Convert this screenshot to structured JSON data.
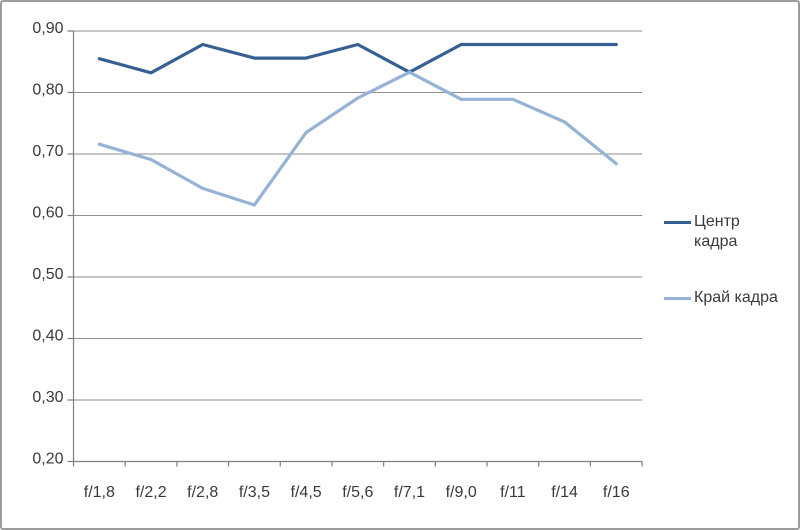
{
  "chart_data": {
    "type": "line",
    "title": "",
    "xlabel": "",
    "ylabel": "",
    "categories": [
      "f/1,8",
      "f/2,2",
      "f/2,8",
      "f/3,5",
      "f/4,5",
      "f/5,6",
      "f/7,1",
      "f/9,0",
      "f/11",
      "f/14",
      "f/16"
    ],
    "series": [
      {
        "name": "Центр кадра",
        "color": "#376092",
        "values": [
          0.855,
          0.832,
          0.878,
          0.856,
          0.856,
          0.878,
          0.833,
          0.878,
          0.878,
          0.878,
          0.878
        ]
      },
      {
        "name": "Край кадра",
        "color": "#95B3D7",
        "values": [
          0.716,
          0.691,
          0.644,
          0.617,
          0.735,
          0.791,
          0.833,
          0.789,
          0.789,
          0.752,
          0.684
        ]
      }
    ],
    "ylim": [
      0.2,
      0.9
    ],
    "yticks": [
      {
        "label": "0,90",
        "value": 0.9
      },
      {
        "label": "0,80",
        "value": 0.8
      },
      {
        "label": "0,70",
        "value": 0.7
      },
      {
        "label": "0,60",
        "value": 0.6
      },
      {
        "label": "0,50",
        "value": 0.5
      },
      {
        "label": "0,40",
        "value": 0.4
      },
      {
        "label": "0,30",
        "value": 0.3
      },
      {
        "label": "0,20",
        "value": 0.2
      }
    ],
    "grid": true,
    "legend_position": "right",
    "decimal_separator": ","
  },
  "colors": {
    "background": "#ffffff",
    "frame_border": "#9b9b9b",
    "gridline": "#8e8e8e",
    "axis": "#7f7f7f",
    "tick": "#7f7f7f",
    "label_text": "#3a3a3a"
  }
}
